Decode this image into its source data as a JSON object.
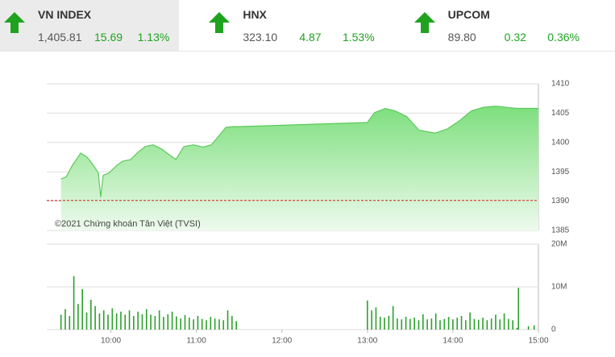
{
  "header": {
    "indices": [
      {
        "name": "VN INDEX",
        "value": "1,405.81",
        "change": "15.69",
        "percent": "1.13%"
      },
      {
        "name": "HNX",
        "value": "323.10",
        "change": "4.87",
        "percent": "1.53%"
      },
      {
        "name": "UPCOM",
        "value": "89.80",
        "change": "0.32",
        "percent": "0.36%"
      }
    ]
  },
  "chart_data": [
    {
      "type": "area",
      "color": "#5cc95c",
      "reference": 1390.12,
      "reference_color": "#d62020",
      "annotation": "©2021 Chứng khoán Tân Việt (TVSI)",
      "x": [
        565,
        568.6,
        573,
        578.8,
        583.3,
        587.8,
        591.2,
        592.9,
        594.6,
        598.6,
        604.2,
        608.2,
        613.9,
        618.4,
        624,
        629.7,
        635.4,
        641,
        645.6,
        651.2,
        658,
        664.8,
        670.5,
        675,
        680.7,
        686.3,
        690,
        780,
        785,
        792.5,
        799.2,
        807.7,
        816.2,
        827.5,
        836,
        844.5,
        853,
        861.5,
        870,
        885,
        900
      ],
      "values": [
        1393.8,
        1394.1,
        1396.1,
        1398.2,
        1397.5,
        1396.1,
        1394.8,
        1390.7,
        1394.4,
        1394.8,
        1396.1,
        1396.8,
        1397.1,
        1398.2,
        1399.3,
        1399.6,
        1398.9,
        1397.9,
        1397.1,
        1399.3,
        1399.6,
        1399.2,
        1399.6,
        1400.9,
        1402.6,
        1402.7,
        1402.7,
        1403.4,
        1405.1,
        1405.8,
        1405.4,
        1404.4,
        1402.1,
        1401.6,
        1402.3,
        1403.7,
        1405.4,
        1406.0,
        1406.2,
        1405.81,
        1405.81
      ],
      "xlim": [
        555,
        900
      ],
      "ylim": [
        1385,
        1410
      ],
      "yticks": [
        1385,
        1390,
        1395,
        1400,
        1405,
        1410
      ],
      "grid": true
    },
    {
      "type": "bar",
      "color": "#2ca02c",
      "x": [
        565,
        568,
        571,
        574,
        577,
        580,
        583,
        586,
        589,
        592,
        595,
        598,
        601,
        604,
        607,
        610,
        613,
        616,
        619,
        622,
        625,
        628,
        631,
        634,
        637,
        640,
        643,
        646,
        649,
        652,
        655,
        658,
        661,
        664,
        667,
        670,
        673,
        676,
        679,
        682,
        685,
        688,
        780,
        783,
        786,
        789,
        792,
        795,
        798,
        801,
        804,
        807,
        810,
        813,
        816,
        819,
        822,
        825,
        828,
        831,
        834,
        837,
        840,
        843,
        846,
        849,
        852,
        855,
        858,
        861,
        864,
        867,
        870,
        873,
        876,
        879,
        882,
        885,
        886,
        893,
        897
      ],
      "values": [
        3.5,
        4.8,
        3.2,
        12.5,
        6,
        9.5,
        4,
        7,
        5.5,
        3.8,
        4.5,
        3.5,
        5,
        3.8,
        4.2,
        3.5,
        4.5,
        3.2,
        4.2,
        3.6,
        4.8,
        3.5,
        3.2,
        4.5,
        3,
        3.6,
        4.2,
        3.1,
        2.6,
        3.4,
        2.8,
        2.4,
        3.2,
        2.5,
        2.2,
        3,
        2.6,
        2.4,
        2.2,
        4.5,
        3.2,
        2,
        6.8,
        4.5,
        5.2,
        3,
        2.8,
        3.2,
        5.5,
        2.6,
        2.4,
        3,
        2.5,
        2.8,
        2.2,
        3.6,
        2.4,
        2.6,
        3.8,
        2.2,
        2.5,
        3,
        2.4,
        2.8,
        3.2,
        2.2,
        4,
        2.5,
        2.3,
        2.8,
        2.2,
        2.6,
        3.5,
        2.4,
        3.8,
        2.5,
        2.2,
        0.4,
        9.8,
        0.8,
        1
      ],
      "xlim": [
        555,
        900
      ],
      "ylim": [
        0,
        20
      ],
      "yticks": [
        0,
        {
          "value": 10,
          "label": "10M"
        },
        {
          "value": 20,
          "label": "20M"
        }
      ],
      "xticks": [
        {
          "value": 600,
          "label": "10:00"
        },
        {
          "value": 660,
          "label": "11:00"
        },
        {
          "value": 720,
          "label": "12:00"
        },
        {
          "value": 780,
          "label": "13:00"
        },
        {
          "value": 840,
          "label": "14:00"
        },
        {
          "value": 900,
          "label": "15:00"
        }
      ],
      "grid": true
    }
  ]
}
